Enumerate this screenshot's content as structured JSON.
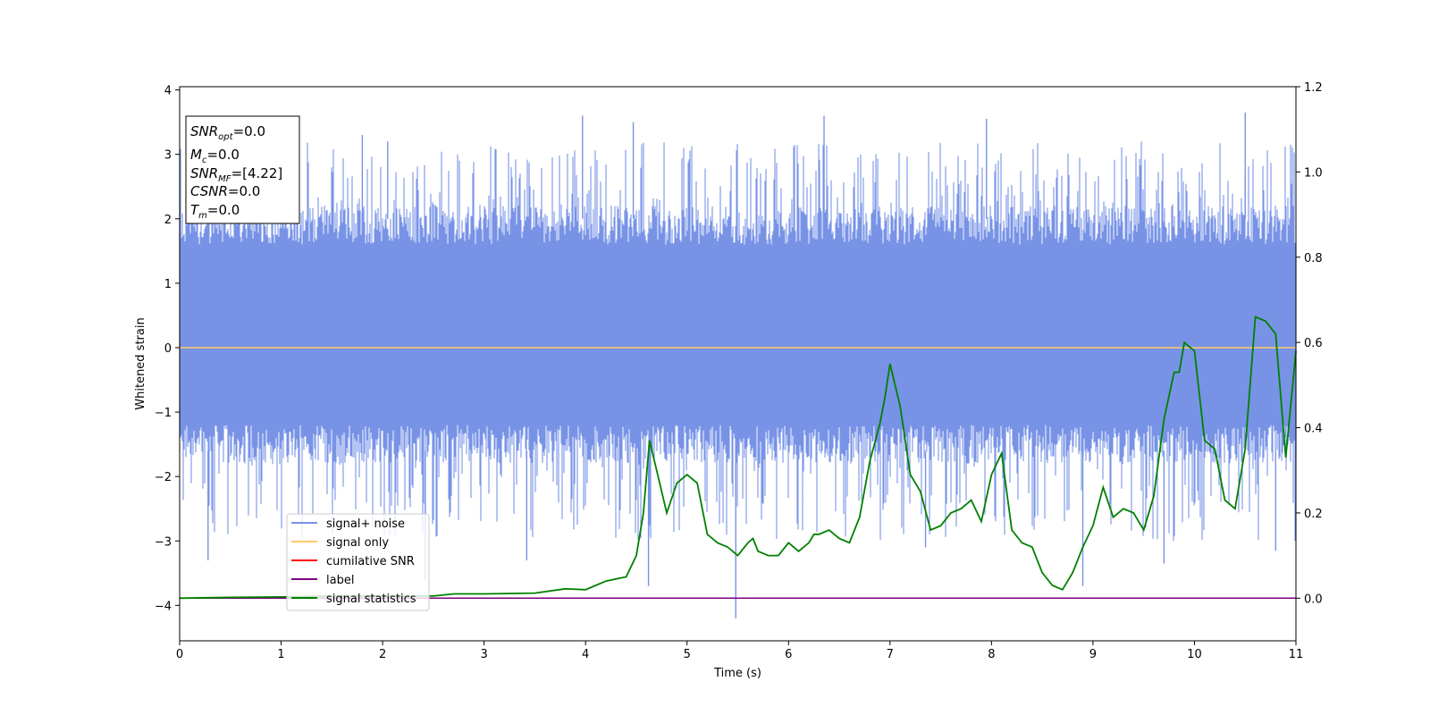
{
  "chart_data": {
    "type": "line",
    "xlabel": "Time (s)",
    "ylabel": "Whitened strain",
    "xlim": [
      0,
      11
    ],
    "ylim_left": [
      -4.55,
      4.05
    ],
    "ylim_right": [
      -0.1,
      1.2
    ],
    "x_ticks": [
      "0",
      "1",
      "2",
      "3",
      "4",
      "5",
      "6",
      "7",
      "8",
      "9",
      "10",
      "11"
    ],
    "y_ticks_left": [
      "4",
      "3",
      "2",
      "1",
      "0",
      "−1",
      "−2",
      "−3",
      "−4"
    ],
    "y_ticks_right": [
      "1.2",
      "1.0",
      "0.8",
      "0.6",
      "0.4",
      "0.2",
      "0.0"
    ],
    "info_box": {
      "line1": {
        "base": "SNR",
        "sub": "opt",
        "value": "=0.0"
      },
      "line2": {
        "base": "M",
        "sub": "c",
        "value": "=0.0"
      },
      "line3": {
        "base": "SNR",
        "sub": "MF",
        "value": "=[4.22]"
      },
      "line4": {
        "base": "CSNR",
        "sub": "",
        "value": "=0.0"
      },
      "line5": {
        "base": "T",
        "sub": "m",
        "value": "=0.0"
      }
    },
    "legend": {
      "placement": "lower-left",
      "entries": [
        {
          "label": "signal+ noise",
          "color": "#7893e6"
        },
        {
          "label": "signal only",
          "color": "#ffc966"
        },
        {
          "label": "cumilative SNR",
          "color": "#ff0000"
        },
        {
          "label": "label",
          "color": "#800080"
        },
        {
          "label": "signal statistics",
          "color": "#008000"
        }
      ]
    },
    "series": [
      {
        "name": "signal+ noise",
        "axis": "left",
        "kind": "noise",
        "color": "#7893e6",
        "typical_range": [
          -1.8,
          2.2
        ],
        "envelope_range": [
          -3.0,
          3.2
        ],
        "spikes": [
          {
            "x": 0.28,
            "y": -3.3
          },
          {
            "x": 1.8,
            "y": 3.3
          },
          {
            "x": 2.05,
            "y": 3.2
          },
          {
            "x": 2.42,
            "y": -3.6
          },
          {
            "x": 3.42,
            "y": -3.3
          },
          {
            "x": 3.97,
            "y": 3.6
          },
          {
            "x": 4.47,
            "y": 3.5
          },
          {
            "x": 4.62,
            "y": -3.7
          },
          {
            "x": 5.48,
            "y": -4.2
          },
          {
            "x": 6.35,
            "y": 3.6
          },
          {
            "x": 7.35,
            "y": -3.1
          },
          {
            "x": 7.95,
            "y": 3.55
          },
          {
            "x": 8.9,
            "y": -3.7
          },
          {
            "x": 9.7,
            "y": -3.35
          },
          {
            "x": 10.5,
            "y": 3.65
          },
          {
            "x": 10.8,
            "y": -3.15
          }
        ]
      },
      {
        "name": "signal only",
        "axis": "left",
        "color": "#ffc966",
        "x": [
          0,
          11
        ],
        "y": [
          0,
          0
        ]
      },
      {
        "name": "label",
        "axis": "right",
        "color": "#800080",
        "x": [
          0,
          11
        ],
        "y": [
          0,
          0
        ]
      },
      {
        "name": "signal statistics",
        "axis": "right",
        "color": "#008000",
        "x": [
          0,
          0.5,
          1,
          1.5,
          2,
          2.5,
          2.7,
          3,
          3.5,
          3.8,
          4,
          4.1,
          4.2,
          4.3,
          4.4,
          4.5,
          4.57,
          4.63,
          4.7,
          4.8,
          4.9,
          5,
          5.05,
          5.1,
          5.2,
          5.3,
          5.4,
          5.5,
          5.6,
          5.65,
          5.7,
          5.8,
          5.9,
          6,
          6.1,
          6.2,
          6.25,
          6.3,
          6.4,
          6.5,
          6.6,
          6.7,
          6.8,
          6.9,
          6.95,
          7,
          7.1,
          7.2,
          7.3,
          7.4,
          7.5,
          7.6,
          7.7,
          7.8,
          7.9,
          8,
          8.1,
          8.2,
          8.3,
          8.4,
          8.5,
          8.6,
          8.7,
          8.8,
          8.9,
          9,
          9.1,
          9.2,
          9.3,
          9.4,
          9.5,
          9.6,
          9.7,
          9.8,
          9.85,
          9.9,
          10,
          10.1,
          10.2,
          10.3,
          10.4,
          10.5,
          10.6,
          10.7,
          10.8,
          10.9,
          11
        ],
        "y": [
          0,
          0.002,
          0.003,
          0.005,
          0.005,
          0.005,
          0.01,
          0.01,
          0.012,
          0.022,
          0.02,
          0.03,
          0.04,
          0.045,
          0.05,
          0.1,
          0.2,
          0.37,
          0.3,
          0.2,
          0.27,
          0.29,
          0.28,
          0.27,
          0.15,
          0.13,
          0.12,
          0.1,
          0.13,
          0.14,
          0.11,
          0.1,
          0.1,
          0.13,
          0.11,
          0.13,
          0.15,
          0.15,
          0.16,
          0.14,
          0.13,
          0.19,
          0.32,
          0.41,
          0.47,
          0.55,
          0.45,
          0.29,
          0.25,
          0.16,
          0.17,
          0.2,
          0.21,
          0.23,
          0.18,
          0.29,
          0.34,
          0.16,
          0.13,
          0.12,
          0.06,
          0.03,
          0.02,
          0.06,
          0.12,
          0.17,
          0.26,
          0.19,
          0.21,
          0.2,
          0.16,
          0.24,
          0.42,
          0.53,
          0.53,
          0.6,
          0.58,
          0.37,
          0.35,
          0.23,
          0.21,
          0.35,
          0.66,
          0.65,
          0.62,
          0.33,
          0.58
        ]
      }
    ]
  }
}
